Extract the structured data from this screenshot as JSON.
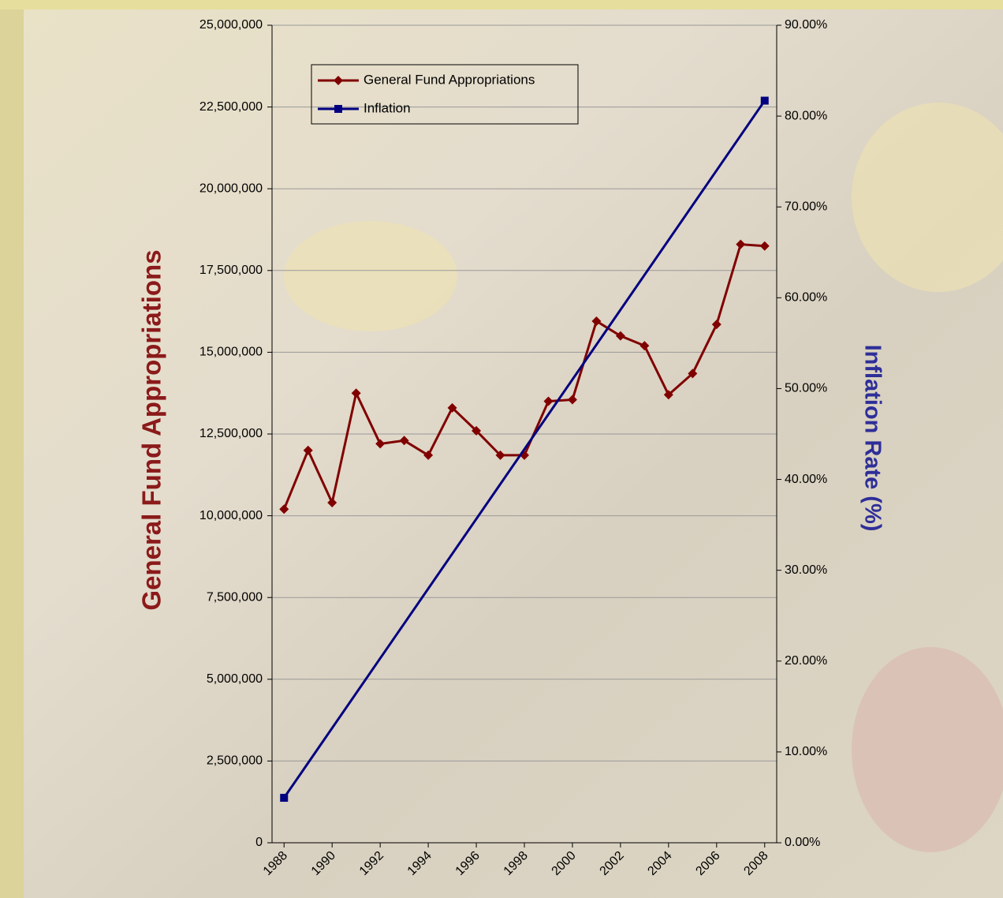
{
  "chart_data": {
    "type": "line",
    "x": [
      1988,
      1989,
      1990,
      1991,
      1992,
      1993,
      1994,
      1995,
      1996,
      1997,
      1998,
      1999,
      2000,
      2001,
      2002,
      2003,
      2004,
      2005,
      2006,
      2007,
      2008
    ],
    "xlim": [
      1987.5,
      2008.5
    ],
    "xticks": [
      1988,
      1990,
      1992,
      1994,
      1996,
      1998,
      2000,
      2002,
      2004,
      2006,
      2008
    ],
    "ylabel": "General Fund Appropriations",
    "y2label": "Inflation Rate (%)",
    "ylim": [
      0,
      25000000
    ],
    "yticks": [
      0,
      {
        "value": 2500000,
        "label": "2,500,000"
      },
      {
        "value": 5000000,
        "label": "5,000,000"
      },
      {
        "value": 7500000,
        "label": "7,500,000"
      },
      {
        "value": 10000000,
        "label": "10,000,000"
      },
      {
        "value": 12500000,
        "label": "12,500,000"
      },
      {
        "value": 15000000,
        "label": "15,000,000"
      },
      {
        "value": 17500000,
        "label": "17,500,000"
      },
      {
        "value": 20000000,
        "label": "20,000,000"
      },
      {
        "value": 22500000,
        "label": "22,500,000"
      },
      {
        "value": 25000000,
        "label": "25,000,000"
      }
    ],
    "y2lim": [
      0,
      90
    ],
    "y2ticks": [
      {
        "value": 0,
        "label": "0.00%"
      },
      {
        "value": 10,
        "label": "10.00%"
      },
      {
        "value": 20,
        "label": "20.00%"
      },
      {
        "value": 30,
        "label": "30.00%"
      },
      {
        "value": 40,
        "label": "40.00%"
      },
      {
        "value": 50,
        "label": "50.00%"
      },
      {
        "value": 60,
        "label": "60.00%"
      },
      {
        "value": 70,
        "label": "70.00%"
      },
      {
        "value": 80,
        "label": "80.00%"
      },
      {
        "value": 90,
        "label": "90.00%"
      }
    ],
    "grid": true,
    "legend": "top-left",
    "series": [
      {
        "name": "General Fund Appropriations",
        "color": "#800000",
        "marker": "diamond",
        "values": [
          10200000,
          12000000,
          10400000,
          13750000,
          12200000,
          12300000,
          11850000,
          13300000,
          12600000,
          11850000,
          11850000,
          13500000,
          13550000,
          15950000,
          15500000,
          15200000,
          13700000,
          14350000,
          15850000,
          18300000,
          18250000
        ]
      },
      {
        "name": "Inflation",
        "color": "#000080",
        "marker": "square",
        "axis": "y2",
        "x": [
          1988,
          2008
        ],
        "values": [
          4.95,
          81.7
        ]
      }
    ]
  }
}
